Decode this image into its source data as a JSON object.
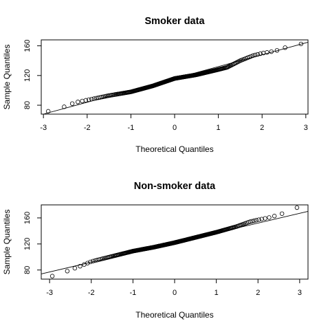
{
  "chart_data": [
    {
      "type": "scatter",
      "title": "Smoker data",
      "xlabel": "Theoretical Quantiles",
      "ylabel": "Sample Quantiles",
      "xlim": [
        -3.05,
        3.05
      ],
      "ylim": [
        68,
        168
      ],
      "xticks": [
        -3,
        -2,
        -1,
        0,
        1,
        2,
        3
      ],
      "yticks": [
        80,
        120,
        160
      ],
      "qqline": {
        "intercept": 116,
        "slope": 16
      },
      "n": 260,
      "shape_points": [
        [
          -2.95,
          71
        ],
        [
          -2.6,
          76
        ],
        [
          -2.4,
          81
        ],
        [
          -2.25,
          84
        ],
        [
          -2.0,
          87
        ],
        [
          -1.5,
          93
        ],
        [
          -1.0,
          98
        ],
        [
          -0.5,
          106
        ],
        [
          0.0,
          116
        ],
        [
          0.5,
          121
        ],
        [
          1.0,
          128
        ],
        [
          1.2,
          131
        ],
        [
          1.5,
          140
        ],
        [
          1.8,
          147
        ],
        [
          2.0,
          150
        ],
        [
          2.3,
          153
        ],
        [
          2.6,
          159
        ],
        [
          2.93,
          163
        ]
      ]
    },
    {
      "type": "scatter",
      "title": "Non-smoker data",
      "xlabel": "Theoretical Quantiles",
      "ylabel": "Sample Quantiles",
      "xlim": [
        -3.2,
        3.2
      ],
      "ylim": [
        66,
        180
      ],
      "xticks": [
        -3,
        -2,
        -1,
        0,
        1,
        2,
        3
      ],
      "yticks": [
        80,
        120,
        160
      ],
      "qqline": {
        "intercept": 122,
        "slope": 15
      },
      "n": 300,
      "shape_points": [
        [
          -3.08,
          68
        ],
        [
          -2.75,
          74
        ],
        [
          -2.55,
          79
        ],
        [
          -2.3,
          85
        ],
        [
          -2.0,
          93
        ],
        [
          -1.5,
          101
        ],
        [
          -1.0,
          109
        ],
        [
          -0.5,
          115
        ],
        [
          0.0,
          122
        ],
        [
          0.5,
          130
        ],
        [
          1.0,
          138
        ],
        [
          1.5,
          147
        ],
        [
          1.8,
          154
        ],
        [
          2.0,
          157
        ],
        [
          2.3,
          161
        ],
        [
          2.6,
          167
        ],
        [
          2.75,
          174
        ],
        [
          3.06,
          177
        ]
      ]
    }
  ]
}
